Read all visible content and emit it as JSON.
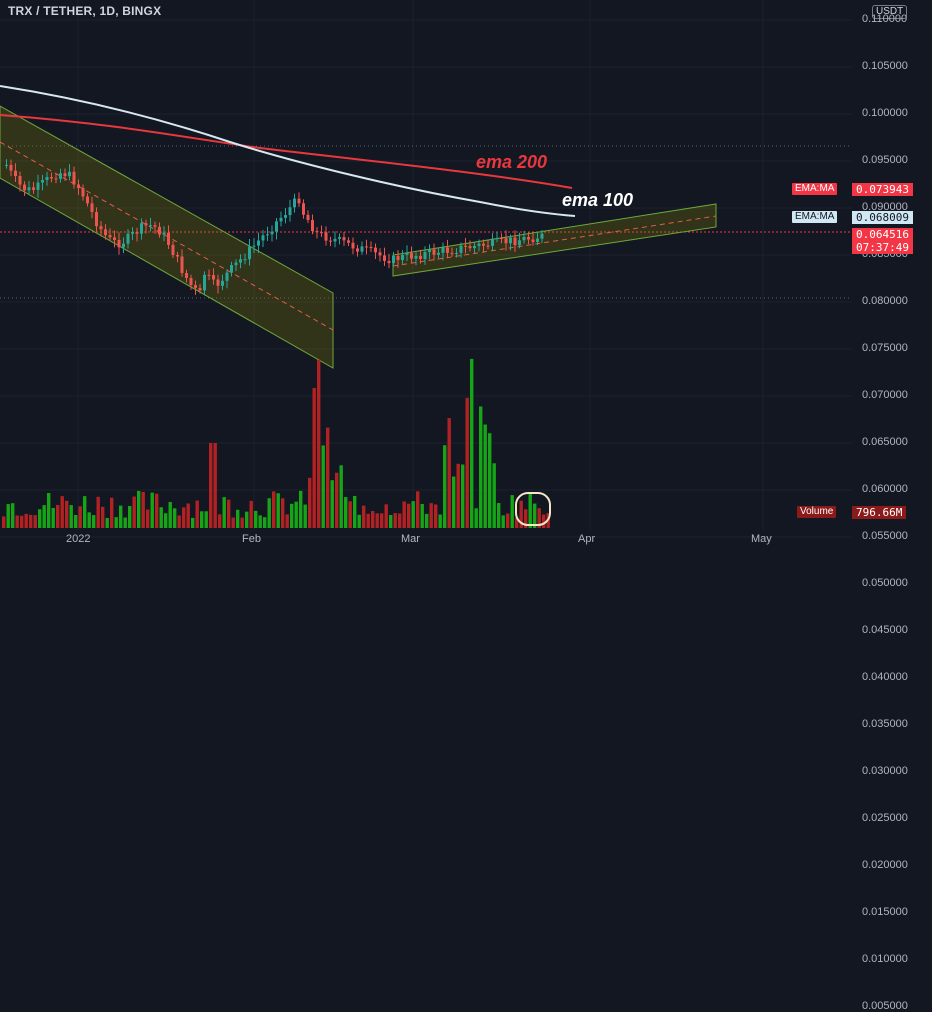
{
  "header": {
    "symbol_title": "TRX / TETHER, 1D, BINGX",
    "currency": "USDT"
  },
  "price_axis": {
    "labels": [
      "0.110000",
      "0.105000",
      "0.100000",
      "0.095000",
      "0.090000",
      "0.085000",
      "0.080000",
      "0.075000",
      "0.070000",
      "0.065000",
      "0.060000",
      "0.055000",
      "0.050000",
      "0.045000",
      "0.040000",
      "0.035000",
      "0.030000",
      "0.025000",
      "0.020000",
      "0.015000",
      "0.010000",
      "0.005000"
    ]
  },
  "time_axis": {
    "labels": [
      "2022",
      "Feb",
      "Mar",
      "Apr",
      "May"
    ]
  },
  "tags": {
    "ema200_label": "EMA:MA",
    "ema200_value": "0.073943",
    "ema100_label": "EMA:MA",
    "ema100_value": "0.068009",
    "last_price": "0.064516",
    "countdown": "07:37:49",
    "volume_label": "Volume",
    "volume_value": "796.66M"
  },
  "annotations": {
    "ema200": "ema 200",
    "ema100": "ema 100"
  },
  "colors": {
    "background": "#131722",
    "up": "#26a69a",
    "down": "#ef5350",
    "vol_up": "#16a516",
    "vol_down": "#b22222",
    "ema200": "#e8383d",
    "ema100": "#d7e7ef",
    "channel": "#6b8e23",
    "last_price": "#f23645"
  }
}
